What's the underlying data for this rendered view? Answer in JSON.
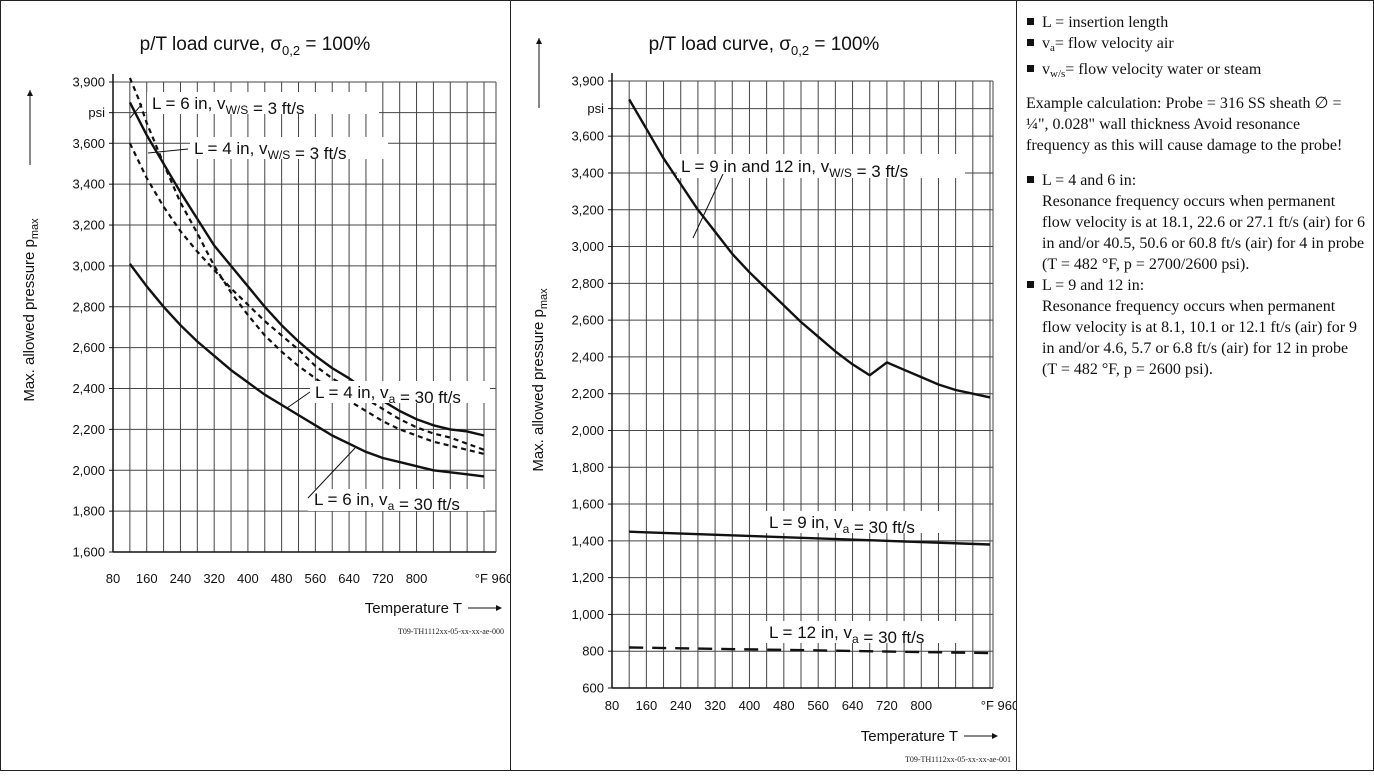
{
  "chart_data": [
    {
      "type": "line",
      "title": "p/T load curve, σ0,2 = 100%",
      "xlabel": "Temperature T",
      "ylabel": "Max. allowed pressure pmax",
      "y_unit": "psi",
      "x_unit": "°F",
      "xticks": [
        "80",
        "160",
        "240",
        "320",
        "400",
        "480",
        "560",
        "640",
        "720",
        "800",
        "°F 960"
      ],
      "yticks": [
        "1,600",
        "1,800",
        "2,000",
        "2,200",
        "2,400",
        "2,600",
        "2,800",
        "3,000",
        "3,200",
        "3,400",
        "3,600",
        "psi",
        "3,900"
      ],
      "xlim": [
        80,
        1000
      ],
      "ylim": [
        1600,
        3950
      ],
      "grid": true,
      "footnote": "T09-TH1112xx-05-xx-xx-ae-000",
      "series": [
        {
          "name": "L = 6 in, vW/S = 3 ft/s",
          "style": "solid",
          "x": [
            120,
            160,
            200,
            240,
            280,
            320,
            360,
            400,
            440,
            480,
            520,
            560,
            600,
            640,
            680,
            720,
            760,
            800,
            840,
            880,
            920,
            960
          ],
          "y": [
            3800,
            3640,
            3500,
            3360,
            3230,
            3100,
            3000,
            2900,
            2800,
            2710,
            2630,
            2560,
            2500,
            2450,
            2390,
            2340,
            2290,
            2250,
            2220,
            2200,
            2190,
            2170
          ]
        },
        {
          "name": "L = 4 in, vW/S = 3 ft/s",
          "style": "dotted",
          "x": [
            120,
            140,
            160,
            200,
            240,
            280,
            320,
            360,
            400,
            440,
            480,
            520,
            560,
            600,
            640,
            680,
            720,
            760,
            800,
            840,
            880,
            920,
            960
          ],
          "y": [
            3920,
            3820,
            3700,
            3500,
            3310,
            3160,
            3000,
            2870,
            2760,
            2660,
            2580,
            2510,
            2450,
            2390,
            2340,
            2290,
            2240,
            2200,
            2170,
            2140,
            2120,
            2100,
            2080
          ]
        },
        {
          "name": "L = 4 in, va = 30 ft/s",
          "style": "dotted",
          "x": [
            120,
            160,
            200,
            240,
            280,
            320,
            360,
            400,
            440,
            480,
            520,
            560,
            600,
            640,
            680,
            720,
            760,
            800,
            840,
            880,
            920,
            960
          ],
          "y": [
            3600,
            3430,
            3290,
            3170,
            3070,
            2980,
            2890,
            2810,
            2730,
            2660,
            2590,
            2510,
            2450,
            2400,
            2350,
            2300,
            2250,
            2210,
            2180,
            2160,
            2130,
            2100
          ]
        },
        {
          "name": "L = 6 in, va = 30 ft/s",
          "style": "solid",
          "x": [
            120,
            160,
            200,
            240,
            280,
            320,
            360,
            400,
            440,
            480,
            520,
            560,
            600,
            640,
            680,
            720,
            760,
            800,
            840,
            880,
            920,
            960
          ],
          "y": [
            3010,
            2900,
            2800,
            2710,
            2630,
            2560,
            2490,
            2430,
            2370,
            2320,
            2270,
            2220,
            2170,
            2130,
            2090,
            2060,
            2040,
            2020,
            2000,
            1990,
            1980,
            1970
          ]
        }
      ],
      "annotations": [
        "L = 6 in, vW/S = 3 ft/s",
        "L = 4 in, vW/S = 3 ft/s",
        "L = 4 in, va = 30 ft/s",
        "L = 6 in, va = 30 ft/s"
      ]
    },
    {
      "type": "line",
      "title": "p/T load curve, σ0,2 = 100%",
      "xlabel": "Temperature T",
      "ylabel": "Max. allowed pressure pmax",
      "y_unit": "psi",
      "x_unit": "°F",
      "xticks": [
        "80",
        "160",
        "240",
        "320",
        "400",
        "480",
        "560",
        "640",
        "720",
        "800",
        "°F 960"
      ],
      "yticks": [
        "600",
        "800",
        "1,000",
        "1,200",
        "1,400",
        "1,600",
        "1,800",
        "2,000",
        "2,200",
        "2,400",
        "2,600",
        "2,800",
        "3,000",
        "3,200",
        "3,400",
        "3,600",
        "psi",
        "3,900"
      ],
      "xlim": [
        80,
        1000
      ],
      "ylim": [
        600,
        3950
      ],
      "grid": true,
      "footnote": "T09-TH1112xx-05-xx-xx-ae-001",
      "series": [
        {
          "name": "L = 9 in and 12 in, vW/S = 3 ft/s",
          "style": "solid",
          "x": [
            120,
            160,
            200,
            240,
            280,
            320,
            360,
            400,
            440,
            480,
            520,
            560,
            600,
            640,
            660,
            680,
            720,
            760,
            800,
            840,
            880,
            920,
            960
          ],
          "y": [
            3800,
            3640,
            3480,
            3340,
            3200,
            3080,
            2960,
            2860,
            2770,
            2680,
            2590,
            2510,
            2430,
            2360,
            2330,
            2300,
            2370,
            2330,
            2290,
            2250,
            2220,
            2200,
            2180
          ]
        },
        {
          "name": "L = 9 in, va = 30 ft/s",
          "style": "solid",
          "x": [
            120,
            960
          ],
          "y": [
            1450,
            1380
          ]
        },
        {
          "name": "L = 12 in, va = 30 ft/s",
          "style": "dashed",
          "x": [
            120,
            960
          ],
          "y": [
            820,
            790
          ]
        }
      ],
      "annotations": [
        "L = 9 in and 12 in, vW/S = 3 ft/s",
        "L = 9 in, va = 30 ft/s",
        "L = 12 in, va = 30 ft/s"
      ]
    }
  ],
  "notes": {
    "legend": [
      {
        "prefix": "L = insertion length"
      },
      {
        "prefix": "v",
        "sub": "a",
        "suffix": "= flow velocity air"
      },
      {
        "prefix": "v",
        "sub": "w/s",
        "suffix": "= flow velocity water or steam"
      }
    ],
    "example": "Example calculation: Probe = 316 SS sheath ∅ = ¼\", 0.028\" wall thickness Avoid resonance frequency as this will cause damage to the probe!",
    "cases": [
      {
        "head": "L = 4 and 6 in:",
        "body": "Resonance frequency occurs when permanent flow velocity is at 18.1, 22.6 or 27.1 ft/s (air) for 6 in and/or 40.5, 50.6 or 60.8 ft/s (air) for 4 in probe (T = 482 °F, p = 2700/2600 psi)."
      },
      {
        "head": "L = 9 and 12 in:",
        "body": "Resonance frequency occurs when permanent flow velocity is at 8.1, 10.1 or 12.1 ft/s (air) for 9 in and/or 4.6, 5.7 or 6.8 ft/s (air) for 12 in probe (T = 482 °F, p = 2600 psi)."
      }
    ]
  }
}
